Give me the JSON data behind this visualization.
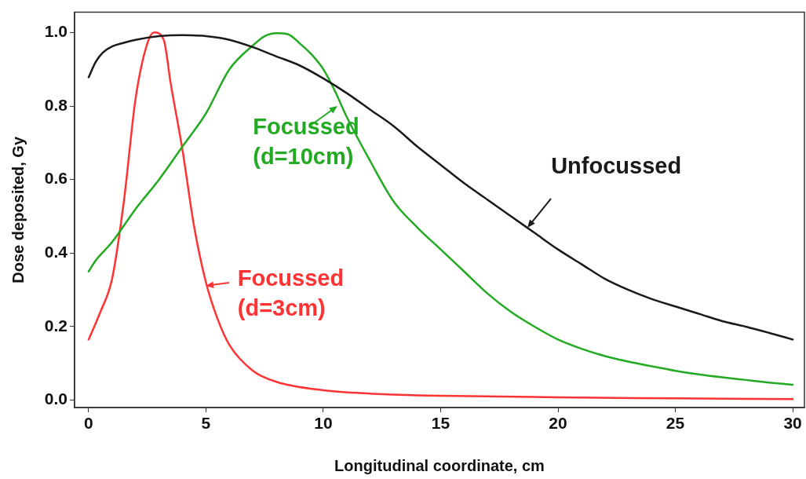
{
  "chart_data": {
    "type": "line",
    "xlabel": "Longitudinal coordinate, cm",
    "ylabel": "Dose deposited, Gy",
    "xlim": [
      -0.6,
      30.5
    ],
    "ylim": [
      -0.02,
      1.055
    ],
    "xticks": [
      0,
      5,
      10,
      15,
      20,
      25,
      30
    ],
    "yticks": [
      {
        "value": 0,
        "label": "0.0"
      },
      {
        "value": 0.2,
        "label": "0.2"
      },
      {
        "value": 0.4,
        "label": "0.4"
      },
      {
        "value": 0.6,
        "label": "0.6"
      },
      {
        "value": 0.8,
        "label": "0.8"
      },
      {
        "value": 1,
        "label": "1.0"
      }
    ],
    "legend": false,
    "marker": "none",
    "line_style": "solid",
    "series": [
      {
        "color": "#1a1a1a",
        "x": [
          0,
          0.3,
          0.6,
          1,
          1.5,
          2,
          3,
          4,
          5,
          6,
          7,
          8,
          9,
          10,
          11,
          12,
          13,
          14,
          15,
          16,
          17,
          18,
          19,
          20,
          21,
          22,
          23,
          24,
          25,
          26,
          27,
          28,
          29,
          30
        ],
        "values": [
          0.878,
          0.92,
          0.945,
          0.962,
          0.972,
          0.98,
          0.99,
          0.993,
          0.99,
          0.98,
          0.96,
          0.935,
          0.91,
          0.875,
          0.835,
          0.79,
          0.745,
          0.69,
          0.64,
          0.59,
          0.545,
          0.5,
          0.455,
          0.41,
          0.37,
          0.33,
          0.3,
          0.275,
          0.255,
          0.235,
          0.215,
          0.2,
          0.183,
          0.165
        ]
      },
      {
        "color": "#22aa22",
        "x": [
          0,
          0.3,
          1,
          2,
          3,
          4,
          5,
          6,
          7,
          7.5,
          8,
          8.5,
          9,
          9.5,
          10,
          10.5,
          11,
          12,
          13,
          14,
          15,
          16,
          17,
          18,
          19,
          20,
          21,
          22,
          23,
          24,
          25,
          26,
          27,
          28,
          29,
          30
        ],
        "values": [
          0.35,
          0.38,
          0.43,
          0.52,
          0.6,
          0.69,
          0.78,
          0.9,
          0.965,
          0.99,
          0.998,
          0.995,
          0.97,
          0.94,
          0.9,
          0.84,
          0.77,
          0.65,
          0.54,
          0.47,
          0.41,
          0.35,
          0.29,
          0.24,
          0.2,
          0.165,
          0.14,
          0.12,
          0.105,
          0.092,
          0.08,
          0.07,
          0.062,
          0.055,
          0.048,
          0.042
        ]
      },
      {
        "color": "#ff3333",
        "x": [
          0,
          0.5,
          1,
          1.5,
          2,
          2.5,
          2.8,
          3.2,
          3.5,
          4,
          4.5,
          5,
          5.5,
          6,
          7,
          8,
          10,
          12,
          15,
          20,
          25,
          30
        ],
        "values": [
          0.165,
          0.24,
          0.33,
          0.54,
          0.82,
          0.97,
          1.0,
          0.98,
          0.86,
          0.68,
          0.47,
          0.32,
          0.22,
          0.15,
          0.08,
          0.05,
          0.027,
          0.018,
          0.012,
          0.008,
          0.005,
          0.003
        ]
      }
    ],
    "annotations": [
      {
        "text": "Unfocussed",
        "x": 18.7,
        "y": 0.47
      },
      {
        "text": "Focussed\n(d=10cm)",
        "x": 10.6,
        "y": 0.8
      },
      {
        "text": "Focussed\n(d=3cm)",
        "x": 5.0,
        "y": 0.31
      }
    ]
  }
}
